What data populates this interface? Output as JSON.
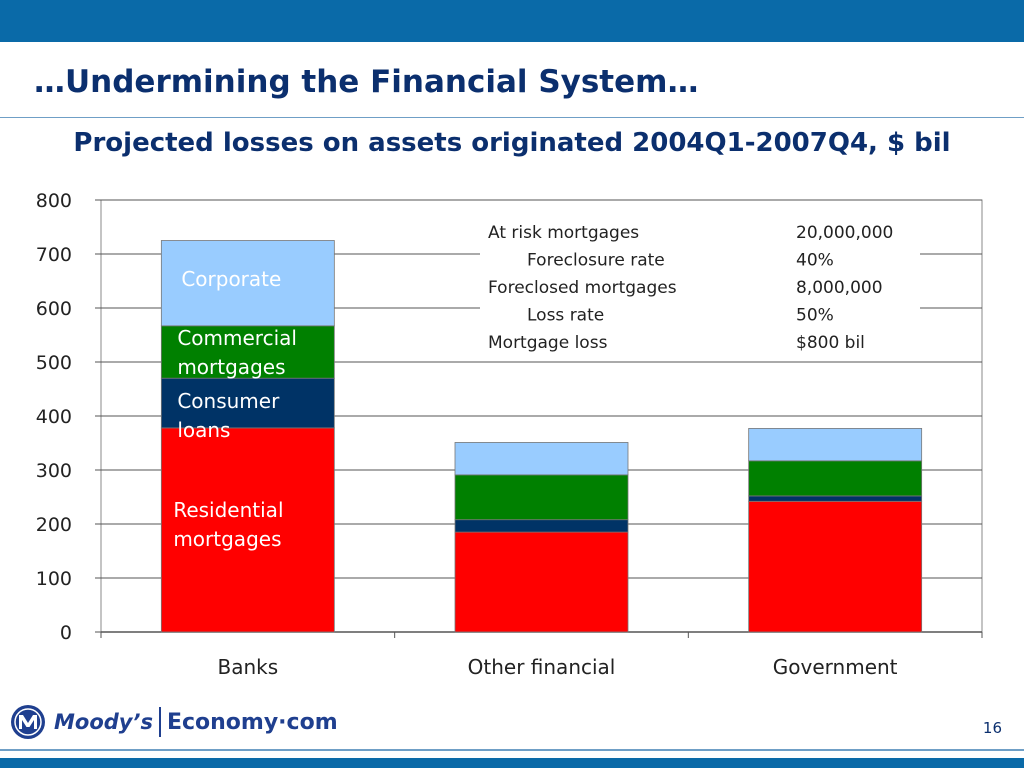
{
  "slide": {
    "title": "…Undermining the Financial System…",
    "page_number": "16"
  },
  "logo": {
    "primary": "Moody’s",
    "secondary": "Economy·com"
  },
  "colors": {
    "header_bar": "#0a6aa8",
    "title_text": "#0b2f6e",
    "residential": "#ff0000",
    "consumer": "#003366",
    "commercial": "#008000",
    "corporate": "#99ccff"
  },
  "chart_data": {
    "type": "bar",
    "stacked": true,
    "title": "Projected losses on assets originated 2004Q1-2007Q4, $ bil",
    "xlabel": "",
    "ylabel": "",
    "ylim": [
      0,
      800
    ],
    "yticks": [
      "0",
      "100",
      "200",
      "300",
      "400",
      "500",
      "600",
      "700",
      "800"
    ],
    "categories": [
      "Banks",
      "Other financial",
      "Government"
    ],
    "grid": true,
    "series": [
      {
        "name": "Residential mortgages",
        "label_lines": [
          "Residential",
          "mortgages"
        ],
        "color": "#ff0000",
        "values": [
          378,
          185,
          242
        ]
      },
      {
        "name": "Consumer loans",
        "label_lines": [
          "Consumer",
          "loans"
        ],
        "color": "#003366",
        "values": [
          92,
          23,
          10
        ]
      },
      {
        "name": "Commercial mortgages",
        "label_lines": [
          "Commercial",
          "mortgages"
        ],
        "color": "#008000",
        "values": [
          97,
          83,
          65
        ]
      },
      {
        "name": "Corporate",
        "label_lines": [
          "Corporate"
        ],
        "color": "#99ccff",
        "values": [
          158,
          60,
          60
        ]
      }
    ],
    "annotation_table": [
      {
        "label": "At risk mortgages",
        "value": "20,000,000",
        "indent": false
      },
      {
        "label": "Foreclosure rate",
        "value": "40%",
        "indent": true
      },
      {
        "label": "Foreclosed mortgages",
        "value": "8,000,000",
        "indent": false
      },
      {
        "label": "Loss rate",
        "value": "50%",
        "indent": true
      },
      {
        "label": "Mortgage loss",
        "value": "$800 bil",
        "indent": false
      }
    ]
  }
}
